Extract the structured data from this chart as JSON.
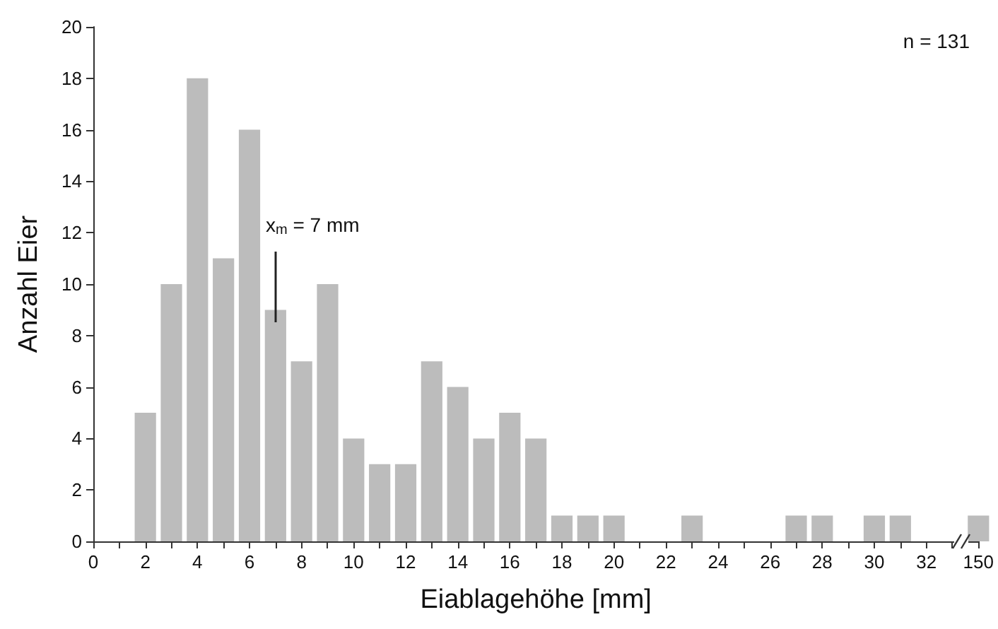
{
  "chart_data": {
    "type": "bar",
    "xlabel": "Eiablagehöhe [mm]",
    "ylabel": "Anzahl Eier",
    "categories": [
      "0",
      null,
      "2",
      null,
      "4",
      null,
      "6",
      null,
      "8",
      null,
      "10",
      null,
      "12",
      null,
      "14",
      null,
      "16",
      null,
      "18",
      null,
      "20",
      null,
      "22",
      null,
      "24",
      null,
      "26",
      null,
      "28",
      null,
      "30",
      null,
      "32",
      null,
      "150"
    ],
    "values": [
      0,
      0,
      5,
      10,
      18,
      11,
      16,
      9,
      7,
      10,
      4,
      3,
      3,
      7,
      6,
      4,
      5,
      4,
      1,
      1,
      1,
      0,
      0,
      1,
      0,
      0,
      0,
      1,
      1,
      0,
      1,
      1,
      0,
      0,
      1
    ],
    "color": "#bcbcbc",
    "ylim": [
      0,
      20
    ],
    "yticks": [
      0,
      2,
      4,
      6,
      8,
      10,
      12,
      14,
      16,
      18,
      20
    ],
    "annotations": [
      "n = 131",
      "x$_{m}$ = 7 mm"
    ]
  }
}
